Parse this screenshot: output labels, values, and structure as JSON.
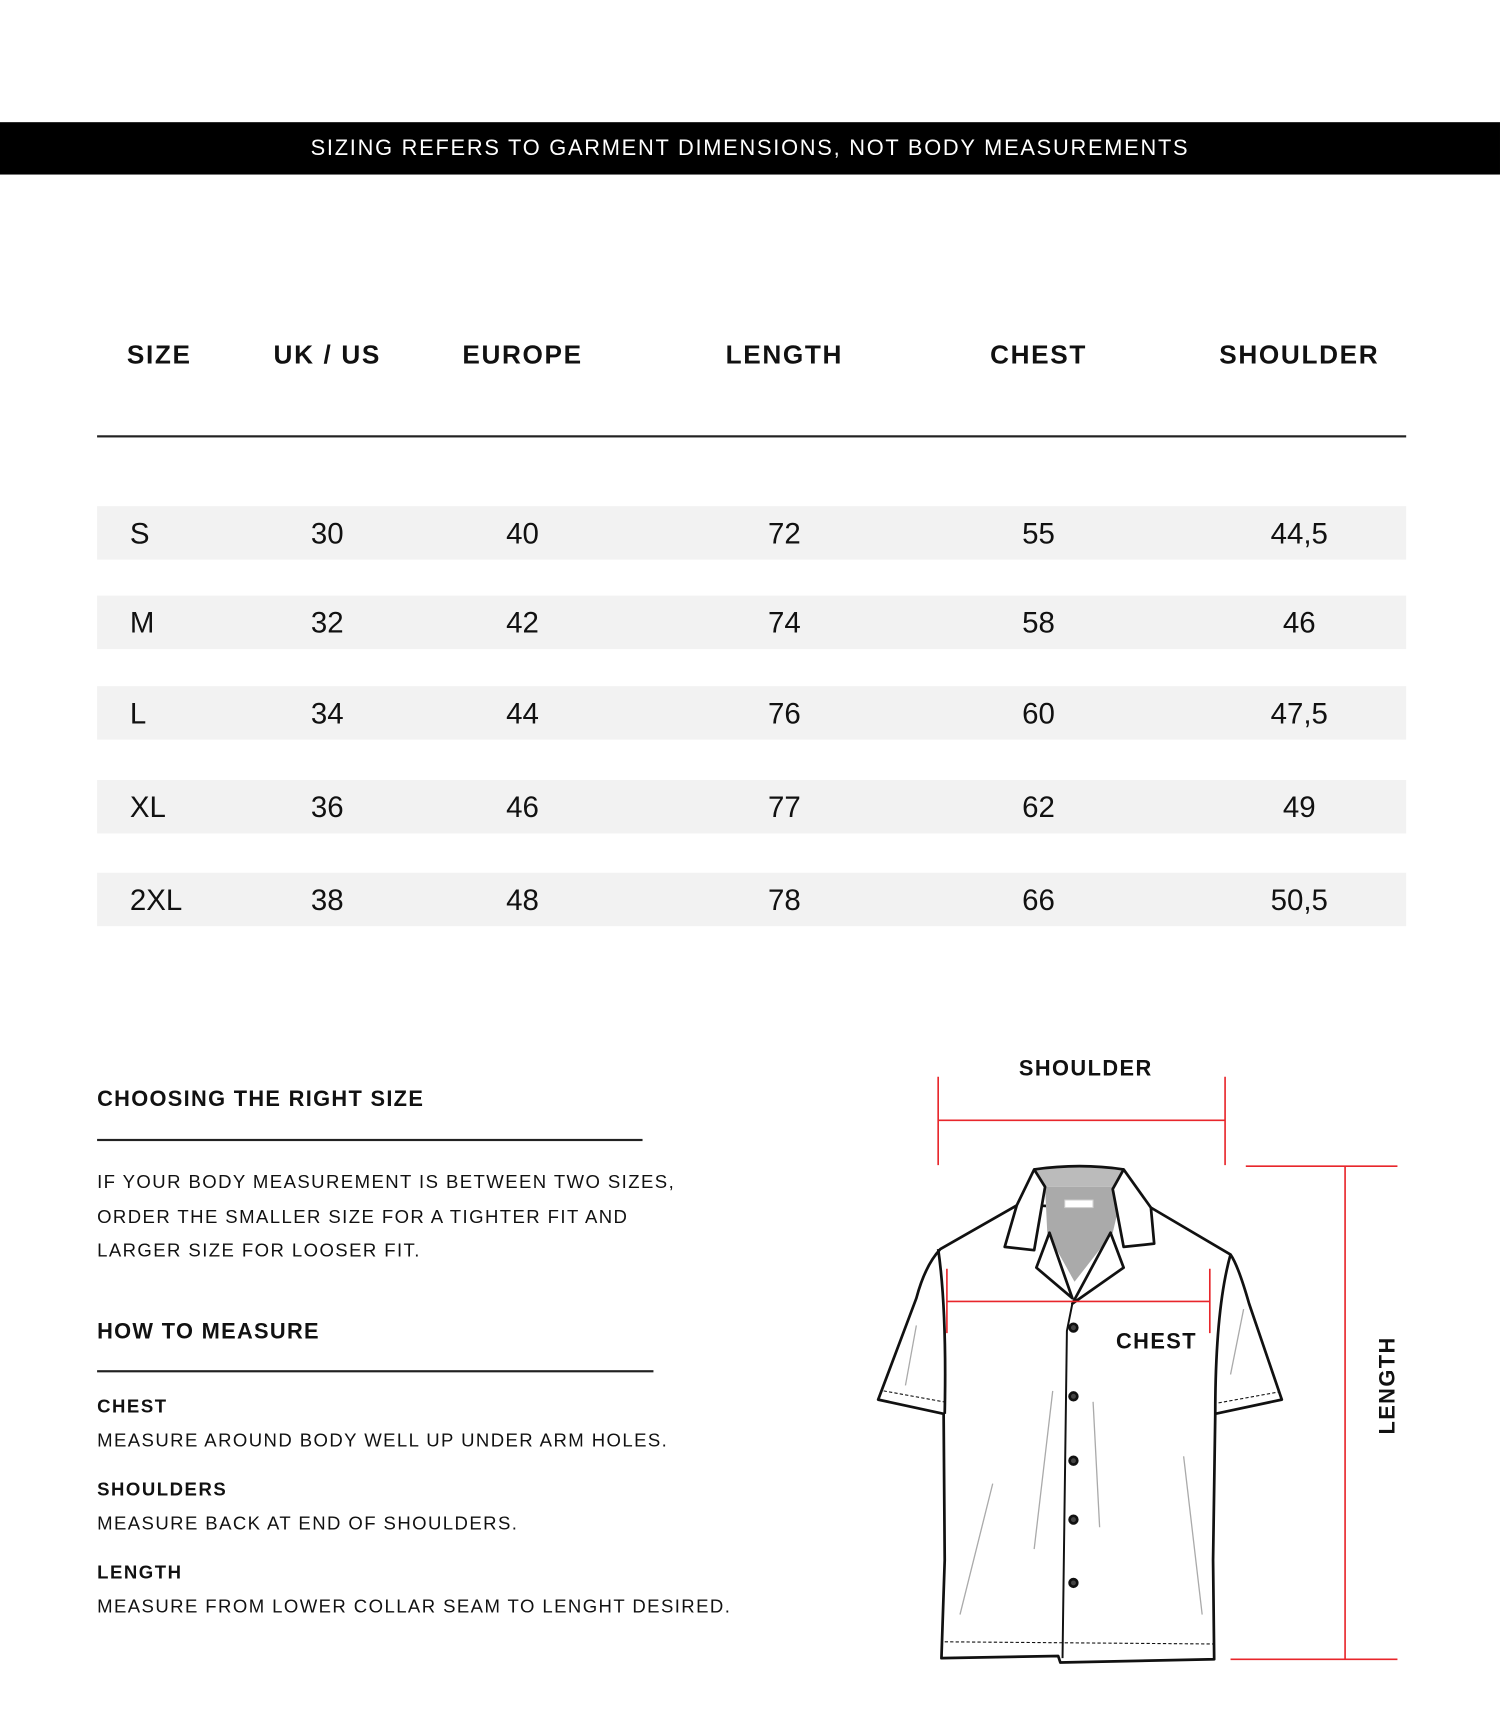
{
  "banner": "SIZING REFERS TO GARMENT DIMENSIONS, NOT BODY MEASUREMENTS",
  "table": {
    "headers": [
      "SIZE",
      "UK / US",
      "EUROPE",
      "LENGTH",
      "CHEST",
      "SHOULDER"
    ],
    "rows": [
      [
        "S",
        "30",
        "40",
        "72",
        "55",
        "44,5"
      ],
      [
        "M",
        "32",
        "42",
        "74",
        "58",
        "46"
      ],
      [
        "L",
        "34",
        "44",
        "76",
        "60",
        "47,5"
      ],
      [
        "XL",
        "36",
        "46",
        "77",
        "62",
        "49"
      ],
      [
        "2XL",
        "38",
        "48",
        "78",
        "66",
        "50,5"
      ]
    ]
  },
  "guide": {
    "choosing_title": "CHOOSING THE RIGHT SIZE",
    "choosing_lines": [
      "IF YOUR BODY MEASUREMENT IS BETWEEN TWO SIZES,",
      "ORDER THE SMALLER SIZE FOR A TIGHTER FIT AND",
      "LARGER SIZE FOR LOOSER FIT."
    ],
    "measure_title": "HOW TO MEASURE",
    "items": [
      {
        "label": "CHEST",
        "text": "MEASURE AROUND BODY WELL UP UNDER ARM HOLES."
      },
      {
        "label": "SHOULDERS",
        "text": "MEASURE BACK AT END OF SHOULDERS."
      },
      {
        "label": "LENGTH",
        "text": "MEASURE FROM LOWER COLLAR SEAM TO LENGHT DESIRED."
      }
    ]
  },
  "diagram": {
    "shoulder_label": "SHOULDER",
    "chest_label": "CHEST",
    "length_label": "LENGTH",
    "measure_color": "#e8262b"
  }
}
